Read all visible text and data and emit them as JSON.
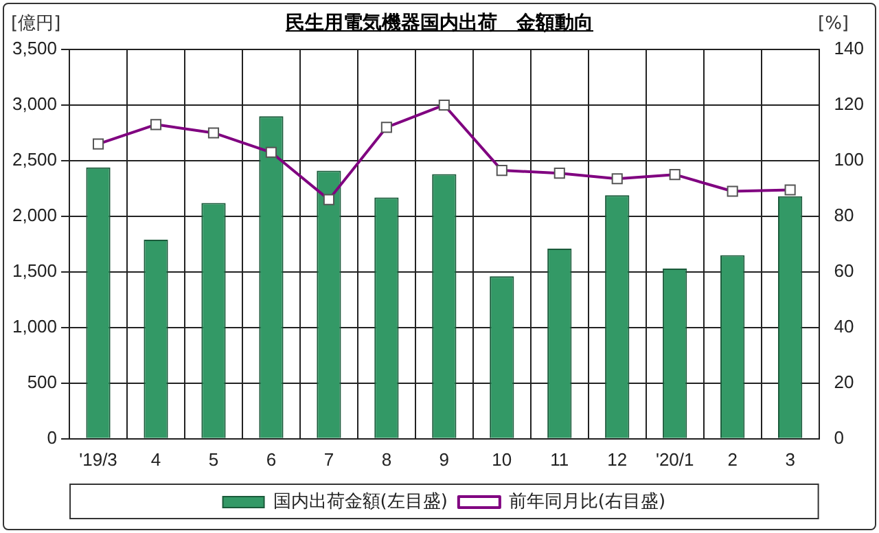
{
  "chart_data": {
    "type": "bar",
    "title": "民生用電気機器国内出荷　金額動向",
    "ylabel": "[億円]",
    "y2label": "[%]",
    "categories": [
      "'19/3",
      "4",
      "5",
      "6",
      "7",
      "8",
      "9",
      "10",
      "11",
      "12",
      "'20/1",
      "2",
      "3"
    ],
    "series": [
      {
        "name": "国内出荷金額(左目盛)",
        "color": "#339966",
        "values": [
          2440,
          1790,
          2120,
          2900,
          2410,
          2170,
          2380,
          1460,
          1710,
          2190,
          1530,
          1650,
          2180
        ]
      },
      {
        "name": "前年同月比(右目盛)",
        "type": "line",
        "axis": "y2",
        "color": "#800080",
        "marker": "square",
        "values": [
          106,
          113,
          110,
          103,
          86,
          112,
          120,
          96.5,
          95.5,
          93.5,
          95,
          89,
          89.5
        ]
      }
    ],
    "ylim": [
      0,
      3500
    ],
    "yticks": [
      {
        "value": 0,
        "label": "0"
      },
      {
        "value": 500,
        "label": "500"
      },
      {
        "value": 1000,
        "label": "1,000"
      },
      {
        "value": 1500,
        "label": "1,500"
      },
      {
        "value": 2000,
        "label": "2,000"
      },
      {
        "value": 2500,
        "label": "2,500"
      },
      {
        "value": 3000,
        "label": "3,000"
      },
      {
        "value": 3500,
        "label": "3,500"
      }
    ],
    "y2lim": [
      0,
      140
    ],
    "y2ticks": [
      0,
      20,
      40,
      60,
      80,
      100,
      120,
      140
    ],
    "grid": true,
    "legend": "bottom"
  }
}
